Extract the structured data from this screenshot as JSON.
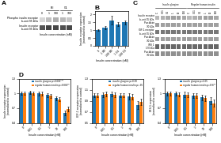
{
  "chart_data": [
    {
      "type": "blot",
      "title": "A",
      "xlabel": "Insulin concentration (nM)",
      "categories": [
        "0",
        "1",
        "100",
        "1",
        "100"
      ],
      "category_groups": [
        null,
        "IBI",
        "IBI",
        "G1",
        "G1"
      ],
      "series": [
        {
          "name": "Phospho insulin receptor\nb-unit 95 kDa",
          "colors": [
            "#d8d8d8",
            "#c0c0c0",
            "#b0b0b0",
            "#bababa",
            "#c8c8c8"
          ]
        },
        {
          "name": "Insulin receptor\nb-unit 95 kDa",
          "colors": [
            "#555555",
            "#444444",
            "#484848",
            "#505050",
            "#484848"
          ]
        }
      ]
    },
    {
      "type": "bar",
      "title": "B",
      "xlabel": "Insulin concentration (nM)",
      "ylabel": "Insulin receptor expression\n(normalized to control)",
      "categories": [
        "0",
        "1 IBI",
        "100 IBI",
        "1 G1",
        "100 G1"
      ],
      "values": [
        1.0,
        1.18,
        1.62,
        1.38,
        1.5
      ],
      "errors": [
        0.05,
        0.1,
        0.28,
        0.14,
        0.12
      ],
      "ylim": [
        0,
        2.2
      ],
      "yticks": [
        0,
        0.5,
        1,
        1.5,
        2
      ]
    },
    {
      "type": "blot",
      "title": "C",
      "categories": [
        "C",
        "0.01",
        "0.1",
        "1",
        "10",
        "100",
        "C",
        "0.01",
        "0.1",
        "1",
        "10",
        "100"
      ],
      "category_groups": [
        "Insulin glargine",
        "Insulin glargine",
        "Insulin glargine",
        "Insulin glargine",
        "Insulin glargine",
        "Insulin glargine",
        "Regular human insulin",
        "Regular human insulin",
        "Regular human insulin",
        "Regular human insulin",
        "Regular human insulin",
        "Regular human insulin"
      ],
      "series": [
        {
          "name": "Insulin receptor\nb-unit 95 kDa",
          "colors": [
            "#b8b8b8",
            "#b0b0b0",
            "#a8a8a8",
            "#a0a0a0",
            "#a0a0a0",
            "#a8a8a8",
            "#b8b8b8",
            "#b0b0b0",
            "#a8a8a8",
            "#a0a0a0",
            "#a0a0a0",
            "#a8a8a8"
          ]
        },
        {
          "name": "Pan Actin\n30 kDa",
          "colors": [
            "#a0a0a0",
            "#a0a0a0",
            "#a0a0a0",
            "#a0a0a0",
            "#a0a0a0",
            "#a0a0a0",
            "#a0a0a0",
            "#a0a0a0",
            "#a0a0a0",
            "#a0a0a0",
            "#a0a0a0",
            "#a0a0a0"
          ]
        },
        {
          "name": "IGF-1 receptor\nb-unit 95 kDa",
          "colors": [
            "#787878",
            "#787878",
            "#787878",
            "#787878",
            "#787878",
            "#787878",
            "#787878",
            "#787878",
            "#787878",
            "#787878",
            "#787878",
            "#787878"
          ]
        },
        {
          "name": "Pan Actin\n30 kDa",
          "colors": [
            "#a0a0a0",
            "#a0a0a0",
            "#a0a0a0",
            "#a0a0a0",
            "#a0a0a0",
            "#a0a0a0",
            "#a0a0a0",
            "#a0a0a0",
            "#a0a0a0",
            "#a0a0a0",
            "#a0a0a0",
            "#a0a0a0"
          ]
        },
        {
          "name": "IRS 1\n170 kDa",
          "colors": [
            "#686868",
            "#686868",
            "#686868",
            "#686868",
            "#686868",
            "#686868",
            "#686868",
            "#686868",
            "#686868",
            "#686868",
            "#686868",
            "#686868"
          ]
        },
        {
          "name": "Pan Actin\n30 kDa",
          "colors": [
            "#909090",
            "#909090",
            "#909090",
            "#909090",
            "#909090",
            "#909090",
            "#909090",
            "#909090",
            "#909090",
            "#909090",
            "#909090",
            "#909090"
          ]
        }
      ]
    },
    {
      "type": "bar",
      "title": "D",
      "xlabel": "Insulin concentration [nM]",
      "ylabel": "Insulin receptor expression\n(normalized to control)",
      "categories": [
        "0",
        "0.01",
        "0.1",
        "1",
        "10",
        "100"
      ],
      "series": [
        {
          "name": "insulin glargine p<0.001***",
          "values": [
            1.0,
            1.02,
            1.0,
            0.97,
            0.9,
            0.6
          ],
          "errors": [
            0.03,
            0.03,
            0.04,
            0.04,
            0.04,
            0.05
          ]
        },
        {
          "name": "regular human insulin p=0.001**",
          "values": [
            1.0,
            1.01,
            0.99,
            0.95,
            0.88,
            0.68
          ],
          "errors": [
            0.03,
            0.03,
            0.04,
            0.04,
            0.04,
            0.05
          ]
        }
      ],
      "ylim": [
        0.4,
        1.3
      ],
      "yticks": [
        0.4,
        0.7,
        1,
        1.3
      ],
      "legend": "upper right"
    },
    {
      "type": "bar",
      "xlabel": "Insulin concentration [nM]",
      "ylabel": "IGF-1 receptor expression\n(normalized to control)",
      "categories": [
        "0",
        "0.01",
        "0.1",
        "1",
        "10",
        "100"
      ],
      "series": [
        {
          "name": "insulin glargine p=0.39",
          "values": [
            1.0,
            1.01,
            1.02,
            1.0,
            0.98,
            0.82
          ],
          "errors": [
            0.04,
            0.04,
            0.04,
            0.04,
            0.05,
            0.07
          ]
        },
        {
          "name": "regular human insulin p=.95",
          "values": [
            1.0,
            1.02,
            1.01,
            1.0,
            0.97,
            0.88
          ],
          "errors": [
            0.04,
            0.04,
            0.04,
            0.04,
            0.05,
            0.06
          ]
        }
      ],
      "ylim": [
        0.5,
        1.3
      ],
      "yticks": [
        0.5,
        0.7,
        0.9,
        1.1,
        1.3
      ],
      "legend": "upper right"
    },
    {
      "type": "bar",
      "xlabel": "Insulin concentration [nM]",
      "ylabel": "IRS-1 expression\n(normalized to control)",
      "categories": [
        "0",
        "0.01",
        "0.1",
        "1",
        "10",
        "100"
      ],
      "series": [
        {
          "name": "insulin glargine p=1.05",
          "values": [
            1.0,
            1.0,
            0.98,
            0.95,
            0.92,
            0.85
          ],
          "errors": [
            0.04,
            0.04,
            0.05,
            0.05,
            0.06,
            0.07
          ]
        },
        {
          "name": "regular human insulin p=0.97*",
          "values": [
            1.0,
            0.98,
            0.97,
            0.95,
            0.9,
            0.8
          ],
          "errors": [
            0.04,
            0.04,
            0.05,
            0.05,
            0.06,
            0.07
          ]
        }
      ],
      "ylim": [
        0.4,
        1.3
      ],
      "yticks": [
        0.4,
        0.7,
        1,
        1.3
      ],
      "legend": "upper right"
    }
  ]
}
